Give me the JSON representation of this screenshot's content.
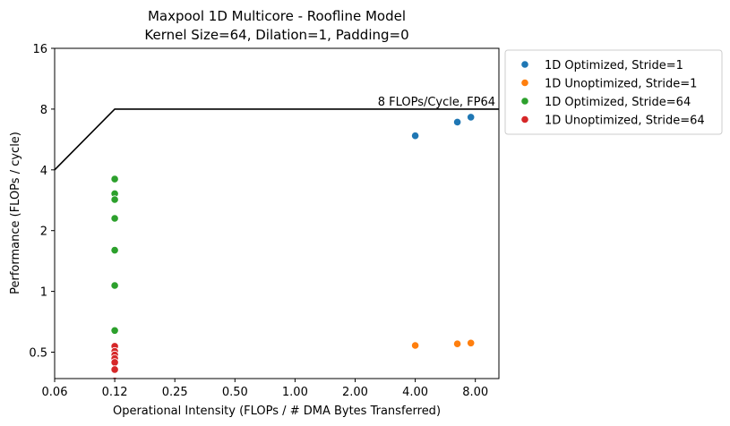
{
  "chart_data": {
    "type": "scatter",
    "title": "Maxpool 1D Multicore - Roofline Model",
    "subtitle": "Kernel Size=64, Dilation=1, Padding=0",
    "xlabel": "Operational Intensity (FLOPs / # DMA Bytes Transferred)",
    "ylabel": "Performance (FLOPs / cycle)",
    "x_scale": "log2",
    "y_scale": "log2",
    "xlim": [
      0.0625,
      10.5
    ],
    "ylim": [
      0.37,
      16
    ],
    "x_ticks": [
      {
        "value": 0.0625,
        "label": "0.06"
      },
      {
        "value": 0.125,
        "label": "0.12"
      },
      {
        "value": 0.25,
        "label": "0.25"
      },
      {
        "value": 0.5,
        "label": "0.50"
      },
      {
        "value": 1,
        "label": "1.00"
      },
      {
        "value": 2,
        "label": "2.00"
      },
      {
        "value": 4,
        "label": "4.00"
      },
      {
        "value": 8,
        "label": "8.00"
      }
    ],
    "y_ticks": [
      {
        "value": 0.5,
        "label": "0.5"
      },
      {
        "value": 1,
        "label": "1"
      },
      {
        "value": 2,
        "label": "2"
      },
      {
        "value": 4,
        "label": "4"
      },
      {
        "value": 8,
        "label": "8"
      },
      {
        "value": 16,
        "label": "16"
      }
    ],
    "roofline": {
      "label": "8 FLOPs/Cycle, FP64",
      "points": [
        [
          0.0625,
          4
        ],
        [
          0.125,
          8
        ],
        [
          10.5,
          8
        ]
      ]
    },
    "grid": false,
    "legend_position": "outside-right-top",
    "series": [
      {
        "name": "1D Optimized, Stride=1",
        "color": "#1f77b4",
        "points": [
          [
            4,
            5.9
          ],
          [
            6.5,
            6.9
          ],
          [
            7.6,
            7.3
          ]
        ]
      },
      {
        "name": "1D Unoptimized, Stride=1",
        "color": "#ff7f0e",
        "points": [
          [
            4,
            0.54
          ],
          [
            6.5,
            0.55
          ],
          [
            7.6,
            0.555
          ]
        ]
      },
      {
        "name": "1D Optimized, Stride=64",
        "color": "#2ca02c",
        "points": [
          [
            0.125,
            3.6
          ],
          [
            0.125,
            3.05
          ],
          [
            0.125,
            2.85
          ],
          [
            0.125,
            2.3
          ],
          [
            0.125,
            1.6
          ],
          [
            0.125,
            1.07
          ],
          [
            0.125,
            0.64
          ]
        ]
      },
      {
        "name": "1D Unoptimized, Stride=64",
        "color": "#d62728",
        "points": [
          [
            0.125,
            0.535
          ],
          [
            0.125,
            0.505
          ],
          [
            0.125,
            0.485
          ],
          [
            0.125,
            0.465
          ],
          [
            0.125,
            0.445
          ],
          [
            0.125,
            0.41
          ],
          [
            0.125,
            0.36
          ]
        ]
      }
    ]
  }
}
